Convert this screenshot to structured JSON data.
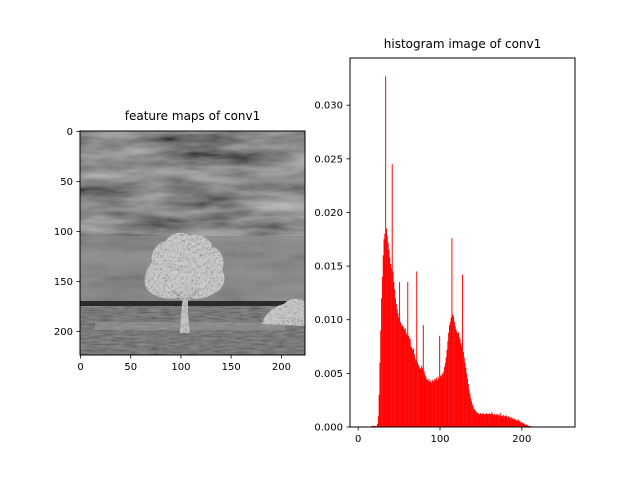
{
  "figure": {
    "background": "#ffffff"
  },
  "image_panel": {
    "title": "feature maps of conv1",
    "xticks": [
      "0",
      "50",
      "100",
      "150",
      "200"
    ],
    "yticks": [
      "0",
      "50",
      "100",
      "150",
      "200"
    ],
    "xlim": [
      -0.5,
      223.5
    ],
    "ylim": [
      223.5,
      -0.5
    ],
    "colormap": "gray",
    "content": "grayscale feature map: dark cloudy sky, lighter horizon, embossed tree centered around x 100, small bush at lower right near x 210, dark ground"
  },
  "chart_data": {
    "type": "bar",
    "title": "histogram image of conv1",
    "xlabel": "",
    "ylabel": "",
    "xlim": [
      -10,
      265
    ],
    "ylim": [
      0,
      0.0344
    ],
    "xticks": [
      "0",
      "100",
      "200"
    ],
    "yticks": [
      "0.000",
      "0.005",
      "0.010",
      "0.015",
      "0.020",
      "0.025",
      "0.030"
    ],
    "bar_color": "#ff0000",
    "bin_width": 1,
    "note": "256 bins (0-255), normalized frequency",
    "values": [
      0,
      0,
      0,
      0,
      0,
      0,
      0,
      0,
      0,
      0,
      0,
      0,
      0,
      0,
      0,
      0,
      0.0001,
      0.0001,
      0.0001,
      0.0001,
      0.0001,
      0.0001,
      0.0001,
      0.0003,
      0.001,
      0.003,
      0.006,
      0.009,
      0.012,
      0.014,
      0.016,
      0.0175,
      0.018,
      0.0327,
      0.0185,
      0.0178,
      0.0172,
      0.0165,
      0.0158,
      0.0152,
      0.0148,
      0.0245,
      0.0145,
      0.0135,
      0.0128,
      0.012,
      0.0115,
      0.011,
      0.0106,
      0.0102,
      0.0135,
      0.0098,
      0.0096,
      0.0094,
      0.0095,
      0.0093,
      0.0091,
      0.0092,
      0.0088,
      0.0086,
      0.0135,
      0.0085,
      0.0083,
      0.0082,
      0.0075,
      0.0074,
      0.0072,
      0.0073,
      0.0068,
      0.0064,
      0.0062,
      0.0145,
      0.006,
      0.0058,
      0.0056,
      0.0055,
      0.0054,
      0.0057,
      0.0055,
      0.0095,
      0.0052,
      0.0049,
      0.0047,
      0.0045,
      0.0044,
      0.0043,
      0.0045,
      0.0042,
      0.0043,
      0.0041,
      0.0044,
      0.0042,
      0.0043,
      0.0045,
      0.0044,
      0.0046,
      0.0043,
      0.0047,
      0.0045,
      0.0085,
      0.0048,
      0.0047,
      0.005,
      0.0049,
      0.0052,
      0.0056,
      0.006,
      0.0065,
      0.0072,
      0.008,
      0.0088,
      0.0095,
      0.0098,
      0.0102,
      0.0176,
      0.0105,
      0.0103,
      0.0098,
      0.0094,
      0.0091,
      0.0089,
      0.0087,
      0.0088,
      0.0084,
      0.0082,
      0.0078,
      0.0075,
      0.0142,
      0.007,
      0.0065,
      0.006,
      0.0055,
      0.005,
      0.0045,
      0.004,
      0.0035,
      0.0031,
      0.0027,
      0.0024,
      0.0021,
      0.0019,
      0.0017,
      0.0016,
      0.0015,
      0.0014,
      0.0013,
      0.0013,
      0.0012,
      0.0012,
      0.0013,
      0.0012,
      0.0012,
      0.0013,
      0.0012,
      0.0012,
      0.0012,
      0.0013,
      0.0012,
      0.0012,
      0.0012,
      0.0013,
      0.0012,
      0.0012,
      0.0014,
      0.0012,
      0.0011,
      0.0012,
      0.0011,
      0.0012,
      0.0011,
      0.0012,
      0.0011,
      0.0011,
      0.0013,
      0.001,
      0.0011,
      0.001,
      0.0011,
      0.001,
      0.001,
      0.0011,
      0.001,
      0.0009,
      0.001,
      0.0009,
      0.0009,
      0.0008,
      0.0009,
      0.0008,
      0.0007,
      0.0008,
      0.0007,
      0.0007,
      0.0006,
      0.0006,
      0.0007,
      0.0006,
      0.0005,
      0.0005,
      0.0004,
      0.0004,
      0.0004,
      0.0003,
      0.0003,
      0.0002,
      0.0002,
      0.0002,
      0.0001,
      0.0001,
      0.0001,
      0.0001,
      0,
      0,
      0,
      0,
      0,
      0,
      0,
      0,
      0,
      0,
      0,
      0,
      0,
      0,
      0,
      0,
      0,
      0,
      0,
      0,
      0,
      0,
      0,
      0,
      0,
      0,
      0,
      0,
      0,
      0,
      0,
      0,
      0,
      0,
      0,
      0,
      0,
      0,
      0,
      0,
      0,
      0,
      0,
      0,
      0
    ]
  }
}
